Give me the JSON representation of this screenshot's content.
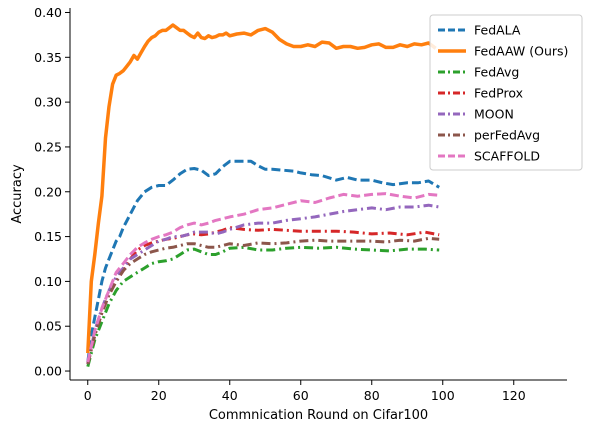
{
  "chart_data": {
    "type": "line",
    "title": "",
    "xlabel": "Commnication Round on Cifar100",
    "ylabel": "Accuracy",
    "xlim": [
      -5,
      135
    ],
    "ylim": [
      -0.01,
      0.405
    ],
    "xticks": [
      0,
      20,
      40,
      60,
      80,
      100,
      120
    ],
    "xtick_labels": [
      "0",
      "20",
      "40",
      "60",
      "80",
      "100",
      "120"
    ],
    "yticks": [
      0.0,
      0.05,
      0.1,
      0.15,
      0.2,
      0.25,
      0.3,
      0.35,
      0.4
    ],
    "ytick_labels": [
      "0.00",
      "0.05",
      "0.10",
      "0.15",
      "0.20",
      "0.25",
      "0.30",
      "0.35",
      "0.40"
    ],
    "grid": false,
    "legend_position": "top-right",
    "series": [
      {
        "name": "FedALA",
        "color": "#1f77b4",
        "style": "dashed",
        "x": [
          0,
          1,
          2,
          3,
          4,
          5,
          6,
          7,
          8,
          9,
          10,
          12,
          14,
          16,
          18,
          20,
          22,
          24,
          26,
          28,
          30,
          32,
          34,
          36,
          38,
          40,
          42,
          44,
          46,
          48,
          50,
          52,
          55,
          58,
          60,
          63,
          66,
          70,
          73,
          76,
          80,
          83,
          86,
          90,
          93,
          96,
          99
        ],
        "y": [
          0.01,
          0.04,
          0.06,
          0.08,
          0.1,
          0.115,
          0.125,
          0.135,
          0.145,
          0.15,
          0.16,
          0.175,
          0.19,
          0.2,
          0.205,
          0.207,
          0.207,
          0.213,
          0.22,
          0.225,
          0.226,
          0.224,
          0.218,
          0.22,
          0.228,
          0.234,
          0.234,
          0.234,
          0.234,
          0.229,
          0.225,
          0.225,
          0.224,
          0.223,
          0.221,
          0.219,
          0.218,
          0.213,
          0.216,
          0.213,
          0.213,
          0.21,
          0.208,
          0.21,
          0.21,
          0.212,
          0.205
        ]
      },
      {
        "name": "FedAAW (Ours)",
        "color": "#ff7f0e",
        "style": "solid",
        "x": [
          0,
          1,
          2,
          3,
          4,
          5,
          6,
          7,
          8,
          9,
          10,
          11,
          12,
          13,
          14,
          15,
          16,
          17,
          18,
          19,
          20,
          21,
          22,
          23,
          24,
          25,
          26,
          27,
          28,
          29,
          30,
          31,
          32,
          33,
          34,
          35,
          36,
          37,
          38,
          39,
          40,
          42,
          44,
          46,
          48,
          50,
          52,
          54,
          56,
          58,
          60,
          62,
          64,
          66,
          68,
          70,
          72,
          74,
          76,
          78,
          80,
          82,
          84,
          86,
          88,
          90,
          92,
          94,
          96,
          98
        ],
        "y": [
          0.02,
          0.1,
          0.13,
          0.165,
          0.195,
          0.26,
          0.295,
          0.32,
          0.33,
          0.332,
          0.335,
          0.34,
          0.345,
          0.352,
          0.348,
          0.355,
          0.362,
          0.368,
          0.372,
          0.374,
          0.378,
          0.38,
          0.38,
          0.383,
          0.386,
          0.383,
          0.38,
          0.38,
          0.377,
          0.374,
          0.372,
          0.377,
          0.372,
          0.371,
          0.374,
          0.372,
          0.373,
          0.375,
          0.375,
          0.377,
          0.374,
          0.376,
          0.377,
          0.375,
          0.38,
          0.382,
          0.378,
          0.37,
          0.365,
          0.362,
          0.362,
          0.364,
          0.362,
          0.367,
          0.366,
          0.36,
          0.362,
          0.362,
          0.36,
          0.361,
          0.364,
          0.365,
          0.361,
          0.361,
          0.364,
          0.362,
          0.365,
          0.364,
          0.366,
          0.36
        ]
      },
      {
        "name": "FedAvg",
        "color": "#2ca02c",
        "style": "dashdot",
        "x": [
          0,
          2,
          4,
          6,
          8,
          10,
          12,
          14,
          16,
          18,
          20,
          22,
          24,
          26,
          28,
          30,
          32,
          34,
          36,
          38,
          40,
          44,
          48,
          52,
          56,
          60,
          65,
          70,
          75,
          80,
          85,
          90,
          95,
          99
        ],
        "y": [
          0.005,
          0.035,
          0.055,
          0.075,
          0.09,
          0.1,
          0.105,
          0.11,
          0.115,
          0.12,
          0.122,
          0.123,
          0.125,
          0.13,
          0.135,
          0.136,
          0.133,
          0.13,
          0.13,
          0.133,
          0.137,
          0.138,
          0.135,
          0.135,
          0.137,
          0.138,
          0.137,
          0.138,
          0.136,
          0.135,
          0.134,
          0.136,
          0.136,
          0.135
        ]
      },
      {
        "name": "FedProx",
        "color": "#d62728",
        "style": "dashdot",
        "x": [
          0,
          2,
          4,
          6,
          8,
          10,
          12,
          14,
          16,
          18,
          20,
          22,
          24,
          26,
          28,
          30,
          32,
          34,
          36,
          38,
          40,
          44,
          48,
          52,
          56,
          60,
          65,
          70,
          75,
          80,
          85,
          90,
          95,
          99
        ],
        "y": [
          0.008,
          0.04,
          0.065,
          0.085,
          0.1,
          0.112,
          0.125,
          0.135,
          0.14,
          0.143,
          0.145,
          0.147,
          0.148,
          0.15,
          0.152,
          0.153,
          0.152,
          0.153,
          0.155,
          0.157,
          0.16,
          0.158,
          0.157,
          0.158,
          0.157,
          0.156,
          0.156,
          0.156,
          0.155,
          0.153,
          0.154,
          0.152,
          0.155,
          0.152
        ]
      },
      {
        "name": "MOON",
        "color": "#9467bd",
        "style": "dashdot",
        "x": [
          0,
          2,
          4,
          6,
          8,
          10,
          12,
          14,
          16,
          18,
          20,
          22,
          24,
          26,
          28,
          30,
          32,
          34,
          36,
          38,
          40,
          44,
          48,
          52,
          56,
          60,
          64,
          68,
          72,
          76,
          80,
          84,
          88,
          92,
          96,
          99
        ],
        "y": [
          0.008,
          0.045,
          0.07,
          0.09,
          0.105,
          0.115,
          0.125,
          0.13,
          0.135,
          0.14,
          0.145,
          0.147,
          0.15,
          0.15,
          0.152,
          0.155,
          0.155,
          0.155,
          0.153,
          0.155,
          0.158,
          0.163,
          0.165,
          0.165,
          0.168,
          0.17,
          0.172,
          0.175,
          0.178,
          0.18,
          0.182,
          0.18,
          0.183,
          0.183,
          0.185,
          0.183
        ]
      },
      {
        "name": "perFedAvg",
        "color": "#8c564b",
        "style": "dashdot",
        "x": [
          0,
          2,
          4,
          6,
          8,
          10,
          12,
          14,
          16,
          18,
          20,
          22,
          24,
          26,
          28,
          30,
          32,
          34,
          36,
          38,
          40,
          44,
          48,
          52,
          56,
          60,
          64,
          68,
          72,
          76,
          80,
          84,
          88,
          92,
          96,
          99
        ],
        "y": [
          0.008,
          0.04,
          0.065,
          0.085,
          0.1,
          0.112,
          0.12,
          0.125,
          0.13,
          0.133,
          0.135,
          0.137,
          0.138,
          0.14,
          0.142,
          0.142,
          0.14,
          0.138,
          0.138,
          0.14,
          0.142,
          0.14,
          0.143,
          0.142,
          0.143,
          0.145,
          0.146,
          0.145,
          0.145,
          0.145,
          0.145,
          0.144,
          0.146,
          0.145,
          0.148,
          0.147
        ]
      },
      {
        "name": "SCAFFOLD",
        "color": "#e377c2",
        "style": "dashed",
        "x": [
          0,
          2,
          4,
          6,
          8,
          10,
          12,
          14,
          16,
          18,
          20,
          22,
          24,
          26,
          28,
          30,
          32,
          34,
          36,
          38,
          40,
          44,
          48,
          52,
          56,
          60,
          64,
          68,
          72,
          76,
          80,
          84,
          88,
          92,
          96,
          99
        ],
        "y": [
          0.01,
          0.045,
          0.07,
          0.09,
          0.11,
          0.12,
          0.13,
          0.138,
          0.143,
          0.147,
          0.15,
          0.152,
          0.155,
          0.16,
          0.163,
          0.165,
          0.163,
          0.165,
          0.168,
          0.17,
          0.172,
          0.175,
          0.18,
          0.182,
          0.186,
          0.19,
          0.188,
          0.193,
          0.197,
          0.195,
          0.197,
          0.198,
          0.195,
          0.193,
          0.197,
          0.196
        ]
      }
    ]
  }
}
